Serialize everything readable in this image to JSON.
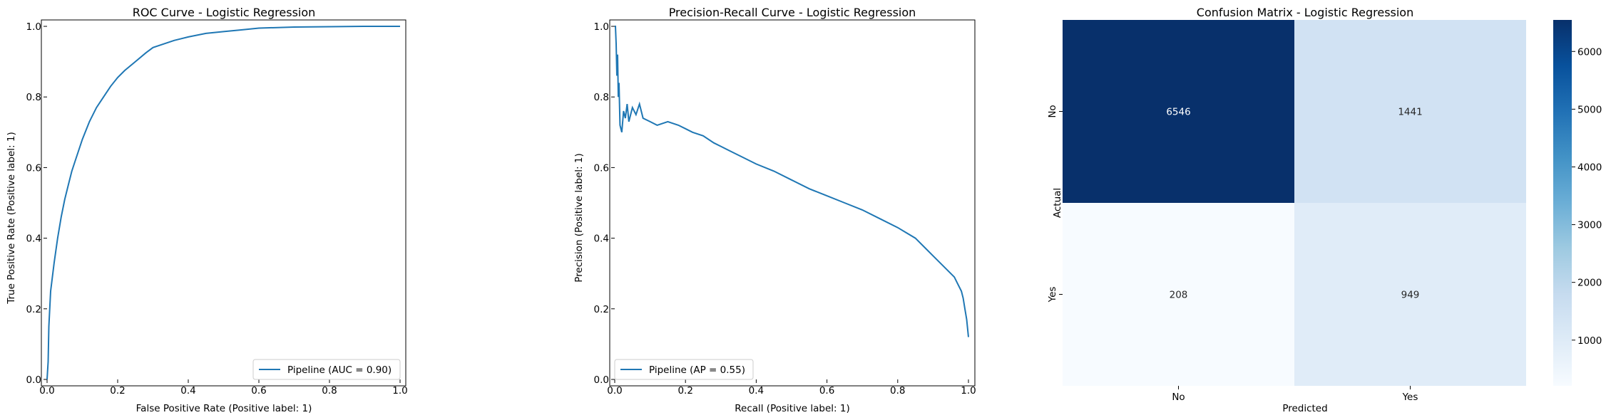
{
  "colors": {
    "line": "#1f77b4",
    "axis": "#000000",
    "legend_border": "#cccccc"
  },
  "chart_data": [
    {
      "type": "line",
      "title": "ROC Curve - Logistic Regression",
      "xlabel": "False Positive Rate (Positive label: 1)",
      "ylabel": "True Positive Rate (Positive label: 1)",
      "xlim": [
        0,
        1
      ],
      "ylim": [
        0,
        1
      ],
      "xticks": [
        "0.0",
        "0.2",
        "0.4",
        "0.6",
        "0.8",
        "1.0"
      ],
      "yticks": [
        "0.0",
        "0.2",
        "0.4",
        "0.6",
        "0.8",
        "1.0"
      ],
      "legend": "lower-right",
      "series": [
        {
          "name": "Pipeline (AUC = 0.90)",
          "x": [
            0,
            0.003,
            0.005,
            0.01,
            0.02,
            0.03,
            0.04,
            0.05,
            0.06,
            0.07,
            0.08,
            0.1,
            0.12,
            0.14,
            0.16,
            0.18,
            0.2,
            0.22,
            0.25,
            0.28,
            0.3,
            0.33,
            0.36,
            0.4,
            0.45,
            0.5,
            0.55,
            0.6,
            0.7,
            0.8,
            0.9,
            1.0
          ],
          "y": [
            0,
            0.05,
            0.15,
            0.25,
            0.33,
            0.4,
            0.46,
            0.51,
            0.55,
            0.59,
            0.62,
            0.68,
            0.73,
            0.77,
            0.8,
            0.83,
            0.855,
            0.875,
            0.9,
            0.925,
            0.94,
            0.95,
            0.96,
            0.97,
            0.98,
            0.985,
            0.99,
            0.995,
            0.998,
            0.999,
            1.0,
            1.0
          ]
        }
      ]
    },
    {
      "type": "line",
      "title": "Precision-Recall Curve - Logistic Regression",
      "xlabel": "Recall (Positive label: 1)",
      "ylabel": "Precision (Positive label: 1)",
      "xlim": [
        0,
        1
      ],
      "ylim": [
        0,
        1
      ],
      "xticks": [
        "0.0",
        "0.2",
        "0.4",
        "0.6",
        "0.8",
        "1.0"
      ],
      "yticks": [
        "0.0",
        "0.2",
        "0.4",
        "0.6",
        "0.8",
        "1.0"
      ],
      "legend": "lower-left",
      "series": [
        {
          "name": "Pipeline (AP = 0.55)",
          "x": [
            0.0,
            0.002,
            0.004,
            0.006,
            0.008,
            0.01,
            0.012,
            0.015,
            0.02,
            0.025,
            0.03,
            0.035,
            0.04,
            0.05,
            0.06,
            0.07,
            0.08,
            0.1,
            0.12,
            0.15,
            0.18,
            0.2,
            0.22,
            0.25,
            0.28,
            0.3,
            0.33,
            0.36,
            0.4,
            0.45,
            0.5,
            0.55,
            0.6,
            0.65,
            0.7,
            0.75,
            0.8,
            0.85,
            0.88,
            0.9,
            0.92,
            0.94,
            0.96,
            0.97,
            0.98,
            0.985,
            0.99,
            0.995,
            1.0
          ],
          "y": [
            1.0,
            1.0,
            0.95,
            0.86,
            0.92,
            0.8,
            0.84,
            0.72,
            0.7,
            0.76,
            0.74,
            0.78,
            0.73,
            0.77,
            0.75,
            0.78,
            0.74,
            0.73,
            0.72,
            0.73,
            0.72,
            0.71,
            0.7,
            0.69,
            0.67,
            0.66,
            0.645,
            0.63,
            0.61,
            0.59,
            0.565,
            0.54,
            0.52,
            0.5,
            0.48,
            0.455,
            0.43,
            0.4,
            0.37,
            0.35,
            0.33,
            0.31,
            0.29,
            0.27,
            0.25,
            0.23,
            0.2,
            0.17,
            0.12
          ]
        }
      ]
    },
    {
      "type": "heatmap",
      "title": "Confusion Matrix - Logistic Regression",
      "xlabel": "Predicted",
      "ylabel": "Actual",
      "row_labels": [
        "No",
        "Yes"
      ],
      "col_labels": [
        "No",
        "Yes"
      ],
      "values": [
        [
          6546,
          1441
        ],
        [
          208,
          949
        ]
      ],
      "cell_labels": [
        [
          "6546",
          "1441"
        ],
        [
          "208",
          "949"
        ]
      ],
      "colormap": "Blues",
      "vmin": 208,
      "vmax": 6546,
      "colorbar_ticks": [
        "1000",
        "2000",
        "3000",
        "4000",
        "5000",
        "6000"
      ]
    }
  ]
}
